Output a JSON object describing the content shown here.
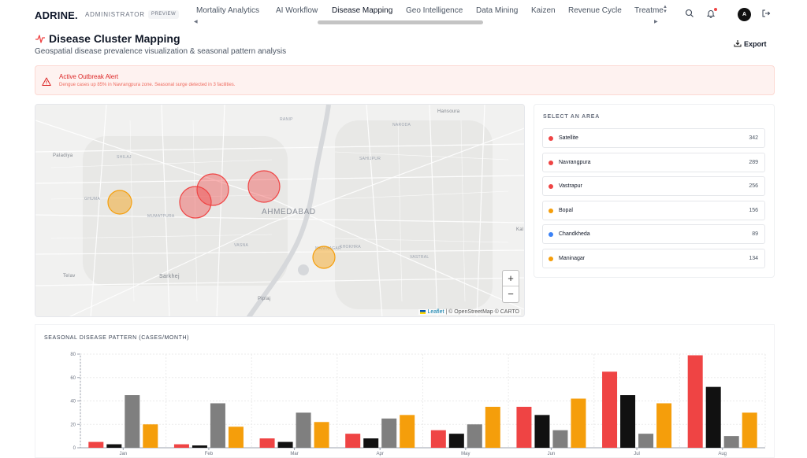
{
  "header": {
    "logo": "ADRINE.",
    "role": "ADMINISTRATOR",
    "badge": "PREVIEW",
    "nav": [
      {
        "label": "Mortality Analytics",
        "active": false
      },
      {
        "label": "AI Workflow",
        "active": false
      },
      {
        "label": "Disease Mapping",
        "active": true
      },
      {
        "label": "Geo Intelligence",
        "active": false
      },
      {
        "label": "Data Mining",
        "active": false
      },
      {
        "label": "Kaizen",
        "active": false
      },
      {
        "label": "Revenue Cycle",
        "active": false
      },
      {
        "label": "Treatme",
        "active": false
      }
    ],
    "avatar_initial": "A",
    "icons": [
      "search-icon",
      "bell-icon",
      "logout-icon"
    ]
  },
  "page": {
    "title": "Disease Cluster Mapping",
    "subtitle": "Geospatial disease prevalence visualization & seasonal pattern analysis",
    "export_label": "Export"
  },
  "alert": {
    "title": "Active Outbreak Alert",
    "message": "Dengue cases up 85% in Navrangpura zone. Seasonal surge detected in 3 facilities."
  },
  "map": {
    "labels": {
      "city": "AHMEDABAD",
      "ranip": "RANIP",
      "naroda": "NARODA",
      "hansoura": "Hansoura",
      "paladiya": "Paladiya",
      "shilaj": "SHILAJ",
      "sahijpur": "SAHIJPUR",
      "ghuma": "GHUMA",
      "mumatpura": "MUMATPURA",
      "vasna": "VASNA",
      "khokhra": "KHOKHRA",
      "vastral": "VASTRAL",
      "telav": "Telav",
      "sarkhej": "Sarkhej",
      "piplaj": "Piplaj",
      "kal": "Kal",
      "maninagar": "MANINAGAR"
    },
    "zoom_in": "+",
    "zoom_out": "−",
    "attribution_leaflet": "Leaflet",
    "attribution_rest": "| © OpenStreetMap © CARTO"
  },
  "areas": {
    "heading": "SELECT AN AREA",
    "items": [
      {
        "name": "Satellite",
        "count": "342",
        "color": "#ef4444"
      },
      {
        "name": "Navrangpura",
        "count": "289",
        "color": "#ef4444"
      },
      {
        "name": "Vastrapur",
        "count": "256",
        "color": "#ef4444"
      },
      {
        "name": "Bopal",
        "count": "156",
        "color": "#f59e0b"
      },
      {
        "name": "Chandkheda",
        "count": "89",
        "color": "#3b82f6"
      },
      {
        "name": "Maninagar",
        "count": "134",
        "color": "#f59e0b"
      }
    ]
  },
  "chart_data": {
    "type": "bar",
    "title": "SEASONAL DISEASE PATTERN (CASES/MONTH)",
    "categories": [
      "Jan",
      "Feb",
      "Mar",
      "Apr",
      "May",
      "Jun",
      "Jul",
      "Aug"
    ],
    "ylim": [
      0,
      80
    ],
    "yticks": [
      0,
      20,
      40,
      60,
      80
    ],
    "grid": true,
    "series": [
      {
        "color": "#ef4444",
        "values": [
          5,
          3,
          8,
          12,
          15,
          35,
          65,
          79
        ]
      },
      {
        "color": "#111111",
        "values": [
          3,
          2,
          5,
          8,
          12,
          28,
          45,
          52
        ]
      },
      {
        "color": "#7f7f7f",
        "values": [
          45,
          38,
          30,
          25,
          20,
          15,
          12,
          10
        ]
      },
      {
        "color": "#f59e0b",
        "values": [
          20,
          18,
          22,
          28,
          35,
          42,
          38,
          30
        ]
      }
    ]
  }
}
